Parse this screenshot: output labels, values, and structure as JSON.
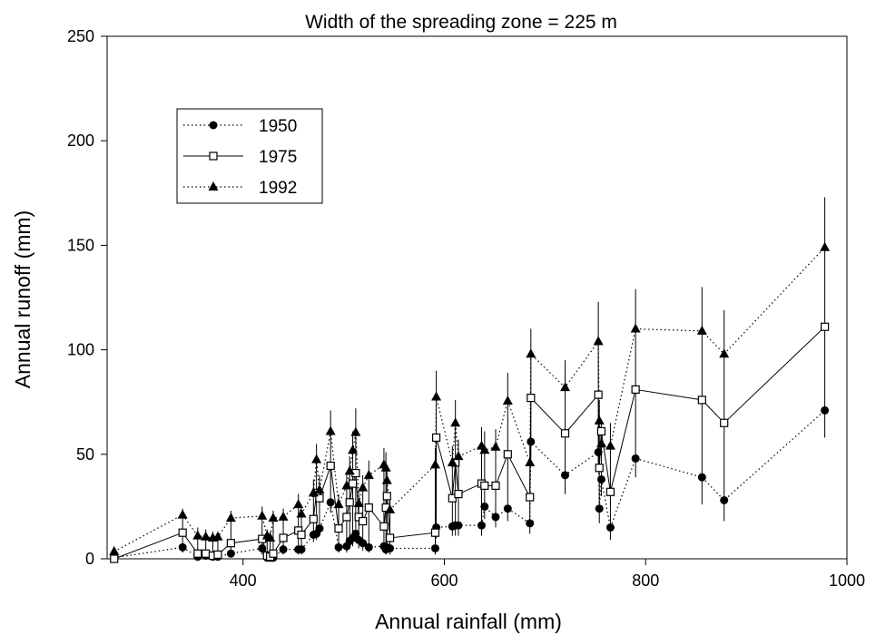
{
  "chart_data": {
    "type": "scatter",
    "title": "Width of the spreading zone = 225 m",
    "xlabel": "Annual rainfall (mm)",
    "ylabel": "Annual runoff (mm)",
    "xlim": [
      265,
      1000
    ],
    "ylim": [
      0,
      250
    ],
    "xticks": [
      400,
      600,
      800,
      1000
    ],
    "yticks": [
      0,
      50,
      100,
      150,
      200,
      250
    ],
    "legend_position": "upper-left",
    "grid": false,
    "x": [
      272,
      340,
      355,
      363,
      370,
      375,
      388,
      419,
      424,
      427,
      430,
      440,
      455,
      458,
      470,
      473,
      476,
      487,
      495,
      503,
      506,
      509,
      512,
      515,
      519,
      525,
      540,
      542,
      543,
      546,
      591,
      592,
      608,
      611,
      614,
      637,
      640,
      651,
      663,
      685,
      686,
      720,
      753,
      754,
      756,
      765,
      790,
      856,
      878,
      978
    ],
    "series": [
      {
        "name": "1950",
        "marker": "filled-circle",
        "line": "dotted",
        "values": [
          0.5,
          5.5,
          1.0,
          1.5,
          1.0,
          1.0,
          2.5,
          5.0,
          0.5,
          0.5,
          0.5,
          4.5,
          4.5,
          4.5,
          11.5,
          12.0,
          14.5,
          27.0,
          5.5,
          6.0,
          8.5,
          10.0,
          12.0,
          9.0,
          7.5,
          5.5,
          6.0,
          4.5,
          5.5,
          5.0,
          5.0,
          15.0,
          15.5,
          16.0,
          16.0,
          16.0,
          25.0,
          20.0,
          24.0,
          17.0,
          56.0,
          40.0,
          51.0,
          24.0,
          38.0,
          15.0,
          48.0,
          39.0,
          28.0,
          71.0
        ]
      },
      {
        "name": "1975",
        "marker": "open-square",
        "line": "solid",
        "values": [
          0.0,
          12.5,
          2.5,
          2.5,
          1.5,
          2.0,
          7.5,
          9.5,
          1.5,
          1.0,
          2.5,
          10.0,
          13.5,
          11.5,
          19.0,
          31.5,
          29.0,
          44.5,
          14.5,
          20.0,
          27.0,
          36.0,
          41.0,
          20.0,
          18.0,
          24.5,
          15.5,
          24.5,
          30.0,
          10.0,
          12.5,
          58.0,
          29.0,
          46.0,
          31.0,
          36.0,
          35.0,
          35.0,
          50.0,
          29.5,
          77.0,
          60.0,
          78.5,
          43.5,
          61.0,
          32.0,
          81.0,
          76.0,
          65.0,
          111.0
        ]
      },
      {
        "name": "1992",
        "marker": "filled-triangle",
        "line": "dotted",
        "values": [
          3.5,
          21.0,
          11.0,
          10.5,
          10.0,
          10.5,
          19.5,
          20.5,
          11.0,
          10.0,
          19.5,
          20.0,
          26.0,
          21.5,
          31.5,
          47.5,
          33.0,
          61.0,
          26.0,
          35.0,
          42.0,
          52.0,
          60.5,
          26.5,
          34.0,
          40.0,
          45.0,
          43.5,
          37.5,
          23.5,
          45.0,
          77.5,
          46.0,
          65.0,
          49.0,
          54.0,
          52.0,
          53.5,
          75.5,
          46.0,
          98.0,
          82.0,
          104.0,
          66.0,
          55.0,
          54.0,
          110.0,
          109.0,
          98.0,
          149.0
        ]
      }
    ],
    "error_bars": {
      "upper": [
        4.0,
        24.0,
        15.0,
        14.0,
        13.0,
        13.0,
        23.0,
        25.0,
        14.0,
        13.0,
        23.0,
        24.0,
        31.0,
        26.0,
        38.0,
        55.0,
        40.0,
        71.0,
        31.0,
        41.0,
        49.0,
        61.0,
        72.0,
        32.0,
        40.0,
        47.0,
        53.0,
        51.0,
        44.0,
        28.0,
        53.0,
        90.0,
        54.0,
        76.0,
        57.0,
        63.0,
        61.0,
        62.0,
        89.0,
        54.0,
        110.0,
        95.0,
        123.0,
        76.0,
        65.0,
        65.0,
        129.0,
        130.0,
        119.0,
        173.0
      ],
      "lower": [
        0.0,
        3.0,
        0.0,
        0.0,
        0.0,
        0.0,
        1.0,
        2.0,
        0.0,
        0.0,
        0.0,
        2.0,
        2.0,
        2.0,
        8.0,
        9.0,
        11.0,
        22.0,
        3.0,
        3.0,
        5.0,
        6.0,
        8.0,
        5.0,
        4.0,
        3.0,
        3.0,
        2.0,
        3.0,
        2.0,
        2.0,
        10.0,
        11.0,
        11.0,
        11.0,
        11.0,
        19.0,
        15.0,
        18.0,
        12.0,
        48.0,
        31.0,
        43.0,
        17.0,
        30.0,
        9.0,
        39.0,
        26.0,
        18.0,
        58.0
      ]
    }
  }
}
